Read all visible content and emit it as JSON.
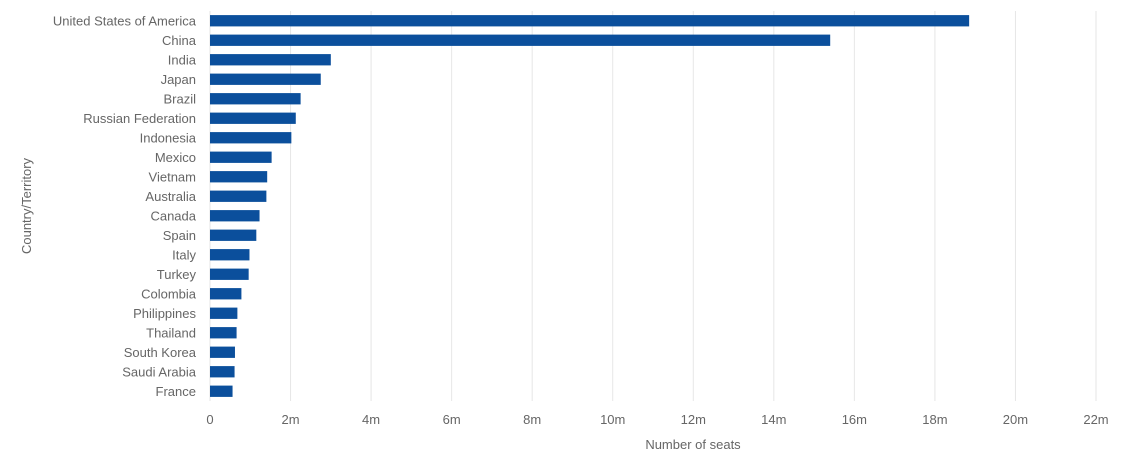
{
  "chart_data": {
    "type": "bar",
    "orientation": "horizontal",
    "title": "",
    "xlabel": "Number of seats",
    "ylabel": "Country/Territory",
    "categories": [
      "United States of America",
      "China",
      "India",
      "Japan",
      "Brazil",
      "Russian Federation",
      "Indonesia",
      "Mexico",
      "Vietnam",
      "Australia",
      "Canada",
      "Spain",
      "Italy",
      "Turkey",
      "Colombia",
      "Philippines",
      "Thailand",
      "South Korea",
      "Saudi Arabia",
      "France"
    ],
    "values": [
      18850000,
      15400000,
      3000000,
      2750000,
      2250000,
      2130000,
      2020000,
      1530000,
      1420000,
      1400000,
      1230000,
      1150000,
      980000,
      960000,
      780000,
      680000,
      660000,
      620000,
      610000,
      560000
    ],
    "xlim": [
      0,
      22000000
    ],
    "xticks": [
      0,
      2000000,
      4000000,
      6000000,
      8000000,
      10000000,
      12000000,
      14000000,
      16000000,
      18000000,
      20000000,
      22000000
    ],
    "xtick_labels": [
      "0",
      "2m",
      "4m",
      "6m",
      "8m",
      "10m",
      "12m",
      "14m",
      "16m",
      "18m",
      "20m",
      "22m"
    ],
    "grid": true,
    "legend": "none",
    "bar_color": "#0b4f9c",
    "grid_color": "#e6e6e6",
    "text_color": "#666666"
  }
}
